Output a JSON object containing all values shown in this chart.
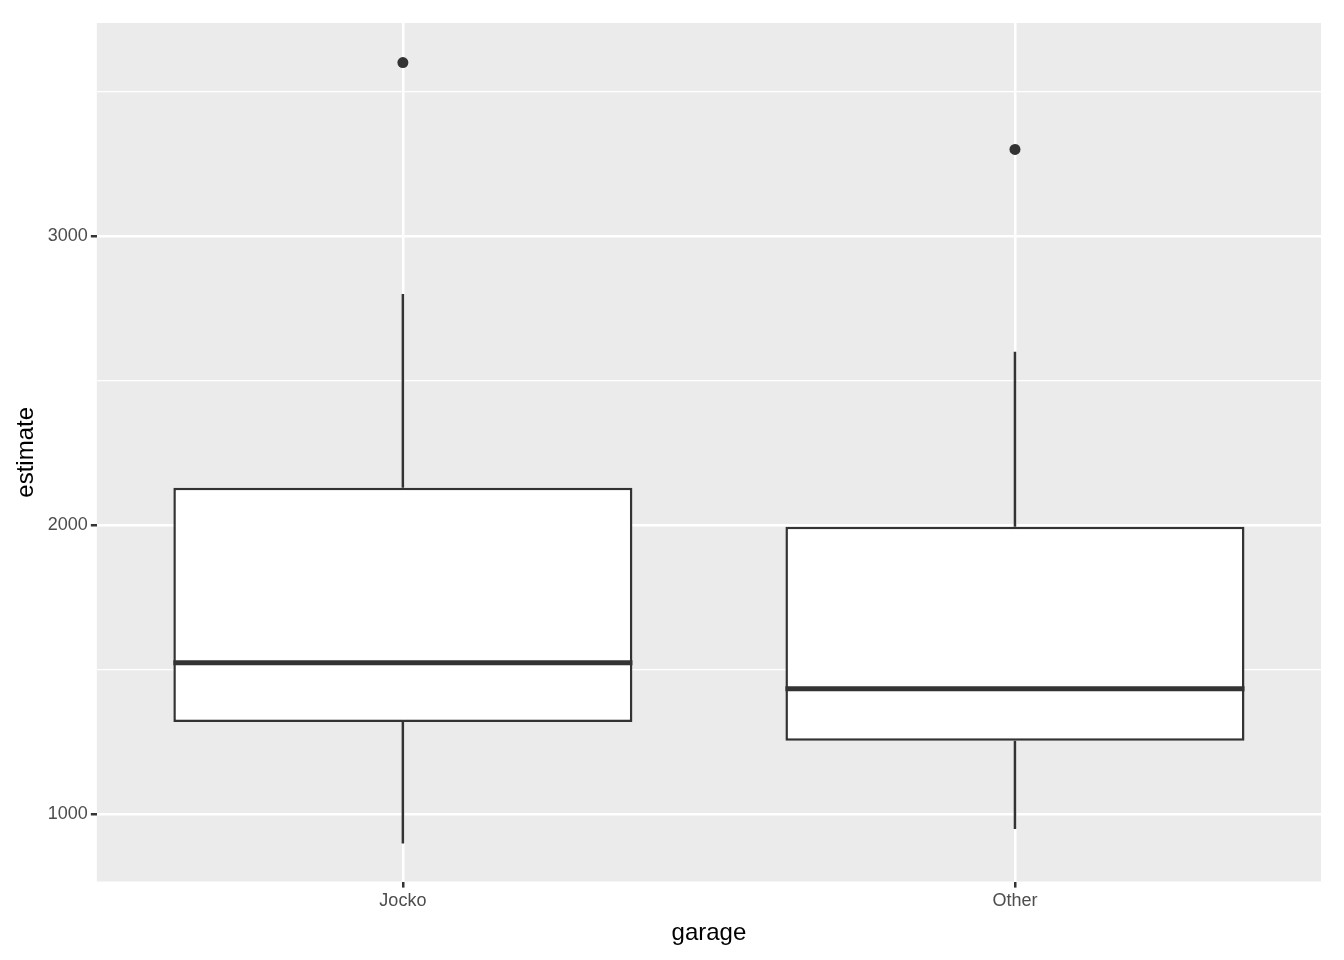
{
  "chart_data": {
    "type": "box",
    "xlabel": "garage",
    "ylabel": "estimate",
    "categories": [
      "Jocko",
      "Other"
    ],
    "boxes": [
      {
        "low": 900,
        "q1": 1320,
        "median": 1525,
        "q3": 2130,
        "high": 2800,
        "outliers": [
          3600
        ]
      },
      {
        "low": 950,
        "q1": 1255,
        "median": 1435,
        "q3": 1995,
        "high": 2600,
        "outliers": [
          3300
        ]
      }
    ],
    "ylim": [
      768,
      3737
    ],
    "yticks": [
      1000,
      {
        "value": 1500,
        "label": null
      },
      2000,
      {
        "value": 2500,
        "label": null
      },
      3000,
      {
        "value": 3500,
        "label": null
      }
    ],
    "grid": true,
    "legend": false,
    "color": "#333333"
  }
}
